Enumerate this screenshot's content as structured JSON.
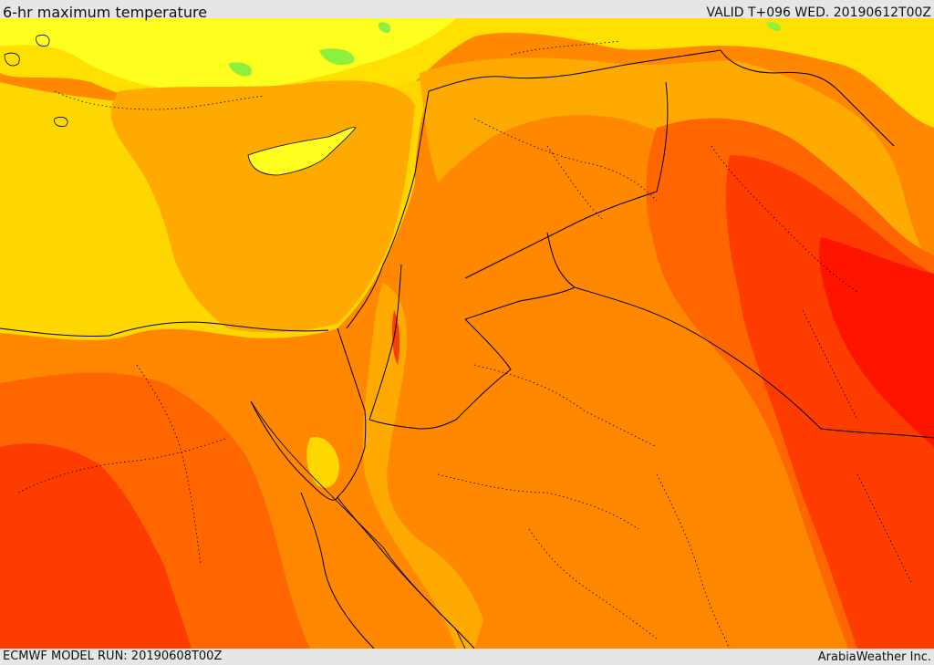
{
  "header": {
    "title": "6-hr maximum temperature",
    "valid": "VALID T+096 WED. 20190612T00Z"
  },
  "footer": {
    "model_run": "ECMWF MODEL RUN: 20190608T00Z",
    "credit": "ArabiaWeather Inc."
  },
  "colors": {
    "sea_yellow": "#ffd700",
    "light_yellow": "#ffff00",
    "green_patch": "#8cf03c",
    "amber": "#ffaa00",
    "orange": "#ff8800",
    "dark_orange": "#ff6600",
    "red_orange": "#ff3c00",
    "red": "#ff1400"
  }
}
